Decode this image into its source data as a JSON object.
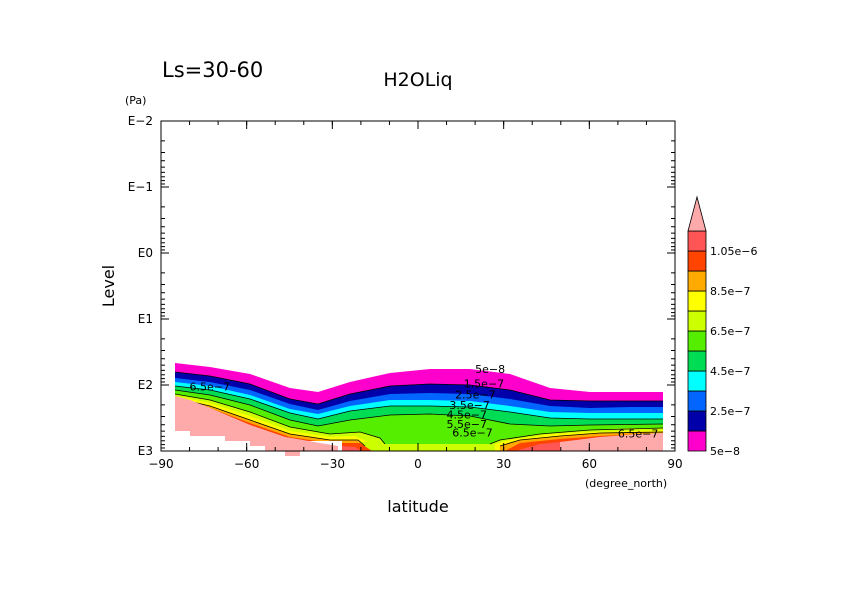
{
  "chart_data": {
    "type": "contour",
    "title": "H2OLiq",
    "subtitle": "Ls=30-60",
    "xlabel": "latitude",
    "xunit": "(degree_north)",
    "ylabel": "Level",
    "yunit": "(Pa)",
    "xlim": [
      -90,
      90
    ],
    "xticks": [
      -90,
      -60,
      -30,
      0,
      30,
      60,
      90
    ],
    "xtick_labels": [
      "−90",
      "−60",
      "−30",
      "0",
      "30",
      "60",
      "90"
    ],
    "ylim": [
      0.01,
      1000
    ],
    "yscale": "log",
    "yaxis_inverted": true,
    "yticks": [
      0.01,
      0.1,
      1,
      10,
      100,
      1000
    ],
    "ytick_labels": [
      "E−2",
      "E−1",
      "E0",
      "E1",
      "E2",
      "E3"
    ],
    "levels": [
      5e-08,
      1.5e-07,
      2.5e-07,
      3.5e-07,
      4.5e-07,
      5.5e-07,
      6.5e-07,
      7.5e-07,
      8.5e-07,
      9.5e-07,
      1.05e-06
    ],
    "colorbar_labels": [
      "5e−8",
      "2.5e−7",
      "4.5e−7",
      "6.5e−7",
      "8.5e−7",
      "1.05e−6"
    ],
    "colors": [
      "#ff00cc",
      "#0000aa",
      "#0066ff",
      "#00ffff",
      "#00dd55",
      "#55ee00",
      "#ccff00",
      "#ffff00",
      "#ffaa00",
      "#ff4400",
      "#ff5555",
      "#ffaaaa"
    ],
    "contour_labels": [
      {
        "text": "5e−8",
        "lat": 20,
        "p": 57
      },
      {
        "text": "1.5e−7",
        "lat": 16,
        "p": 95
      },
      {
        "text": "2.5e−7",
        "lat": 13,
        "p": 140
      },
      {
        "text": "3.5e−7",
        "lat": 11,
        "p": 200
      },
      {
        "text": "4.5e−7",
        "lat": 10,
        "p": 280
      },
      {
        "text": "5.5e−7",
        "lat": 10,
        "p": 390
      },
      {
        "text": "6.5e−7",
        "lat": 12,
        "p": 520
      },
      {
        "text": "6.5e−7",
        "lat": -80,
        "p": 105
      },
      {
        "text": "6.5e−7",
        "lat": 70,
        "p": 540
      }
    ]
  }
}
